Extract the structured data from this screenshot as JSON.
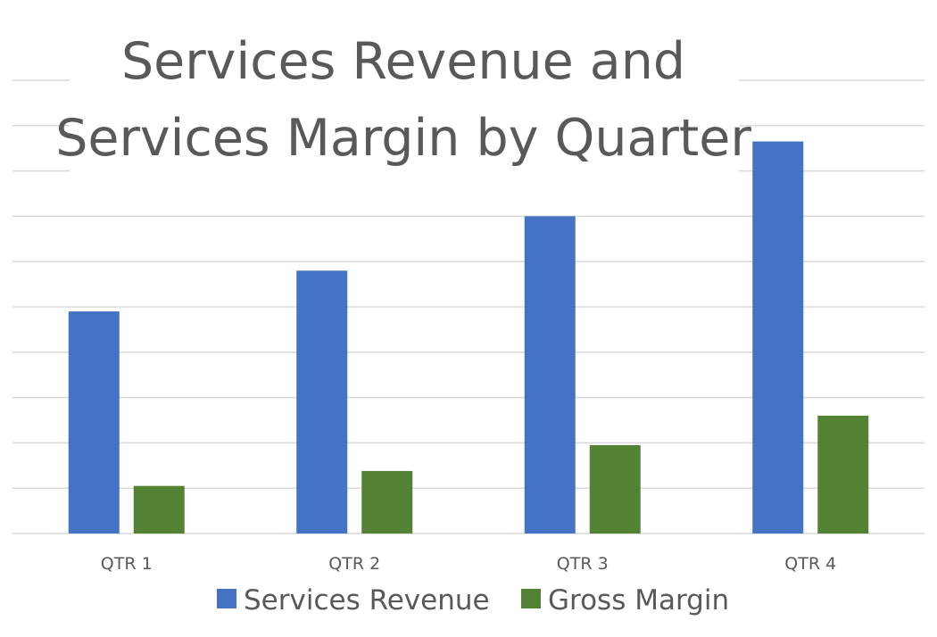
{
  "chart_data": {
    "type": "bar",
    "title_lines": [
      "Services Revenue and",
      "Services Margin by Quarter"
    ],
    "categories": [
      "QTR 1",
      "QTR 2",
      "QTR 3",
      "QTR 4"
    ],
    "series": [
      {
        "name": "Services Revenue",
        "color": "#4472c4",
        "values": [
          4.9,
          5.8,
          7.0,
          8.65
        ]
      },
      {
        "name": "Gross Margin",
        "color": "#548235",
        "values": [
          1.05,
          1.38,
          1.95,
          2.6
        ]
      }
    ],
    "ylim": [
      0,
      10
    ],
    "gridline_step": 1,
    "y_tick_labels_shown": false,
    "grid": true,
    "legend_position": "bottom"
  }
}
